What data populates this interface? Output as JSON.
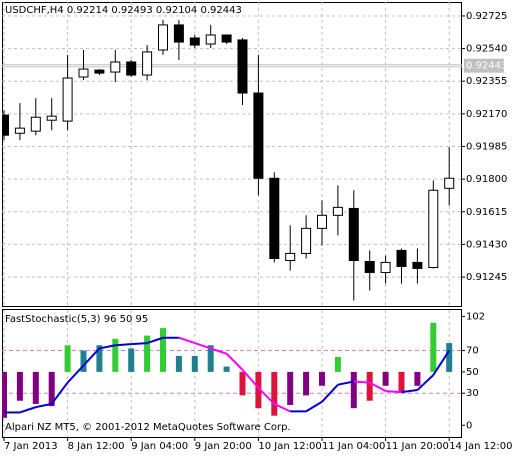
{
  "chart_data": [
    {
      "type": "candlestick",
      "title": "USDCHF,H4  0.92214 0.92493 0.92104 0.92443",
      "categories": [
        "7 Jan 2013",
        null,
        null,
        null,
        "8 Jan 12:00",
        null,
        null,
        null,
        "9 Jan 04:00",
        null,
        null,
        null,
        "9 Jan 20:00",
        null,
        null,
        null,
        "10 Jan 12:00",
        null,
        null,
        null,
        "11 Jan 04:00",
        null,
        null,
        null,
        "11 Jan 20:00",
        null,
        null,
        null,
        "14 Jan 12:00"
      ],
      "open": [
        0.92163,
        0.9206,
        0.92072,
        0.92134,
        0.92129,
        0.92379,
        0.92418,
        0.92407,
        0.92464,
        0.9239,
        0.92532,
        0.92674,
        0.926,
        0.92566,
        0.92617,
        0.92589,
        0.92288,
        0.91805,
        0.91339,
        0.91379,
        0.91521,
        0.91595,
        0.91634,
        0.91333,
        0.91271,
        0.91396,
        0.91328,
        0.91299,
        0.91748
      ],
      "high": [
        0.92191,
        0.92231,
        0.92259,
        0.92259,
        0.92504,
        0.92532,
        0.92424,
        0.92532,
        0.92475,
        0.9256,
        0.92702,
        0.92702,
        0.92617,
        0.92674,
        0.92617,
        0.926,
        0.92504,
        0.91839,
        0.91538,
        0.91595,
        0.9168,
        0.91765,
        0.91737,
        0.91396,
        0.91367,
        0.91407,
        0.91407,
        0.91793,
        0.91981
      ],
      "low": [
        0.92021,
        0.92021,
        0.92049,
        0.92077,
        0.92077,
        0.92361,
        0.9239,
        0.9235,
        0.92379,
        0.92361,
        0.92504,
        0.92475,
        0.92543,
        0.92543,
        0.92566,
        0.9222,
        0.91708,
        0.91328,
        0.91282,
        0.9135,
        0.91424,
        0.91481,
        0.91112,
        0.91169,
        0.91208,
        0.91208,
        0.91208,
        0.91294,
        0.91651
      ],
      "close": [
        0.92049,
        0.92089,
        0.92151,
        0.92157,
        0.92373,
        0.92424,
        0.92401,
        0.92464,
        0.9239,
        0.92521,
        0.92674,
        0.92577,
        0.9256,
        0.92617,
        0.92577,
        0.92288,
        0.91805,
        0.9135,
        0.91379,
        0.91521,
        0.91595,
        0.9164,
        0.91339,
        0.91271,
        0.91328,
        0.91305,
        0.91294,
        0.91737,
        0.91805
      ],
      "up_color": "#ffffff",
      "down_color": "#000000",
      "current_price": 0.92443,
      "ylim": [
        0.91081,
        0.92804
      ],
      "yticks": [
        {
          "value": 0.92725,
          "label": "0.92725"
        },
        {
          "value": 0.9254,
          "label": "0.92540"
        },
        {
          "value": 0.92355,
          "label": "0.92355"
        },
        {
          "value": 0.9217,
          "label": "0.92170"
        },
        {
          "value": 0.91985,
          "label": "0.91985"
        },
        {
          "value": 0.918,
          "label": "0.91800"
        },
        {
          "value": 0.91615,
          "label": "0.91615"
        },
        {
          "value": 0.9143,
          "label": "0.91430"
        },
        {
          "value": 0.91245,
          "label": "0.91245"
        }
      ],
      "grid": true
    },
    {
      "type": "stochastic",
      "title": "FastStochastic(5,3) 96 50 95",
      "annotation": "Alpari NZ MT5, © 2001-2012 MetaQuotes Software Corp.",
      "base": 50,
      "values": [
        7,
        23,
        20,
        18,
        75,
        70,
        75,
        81,
        72,
        84,
        91,
        65,
        65,
        75,
        55,
        28,
        16,
        9,
        19,
        28,
        37,
        64,
        16,
        23,
        37,
        31,
        37,
        96,
        77
      ],
      "bar_colors": [
        "#800080",
        "#800080",
        "#800080",
        "#800080",
        "#32cd32",
        "#20808f",
        "#20808f",
        "#32cd32",
        "#20808f",
        "#32cd32",
        "#32cd32",
        "#20808f",
        "#20808f",
        "#20808f",
        "#20808f",
        "#dc143c",
        "#dc143c",
        "#dc143c",
        "#800080",
        "#800080",
        "#800080",
        "#32cd32",
        "#800080",
        "#dc143c",
        "#800080",
        "#dc143c",
        "#800080",
        "#32cd32",
        "#20808f"
      ],
      "signal": [
        12,
        12,
        17,
        20,
        40,
        56,
        72,
        75,
        76,
        77,
        82,
        82,
        77,
        72,
        67,
        52,
        35,
        20,
        13,
        13,
        22,
        38,
        41,
        40,
        32,
        31,
        33,
        47,
        70
      ],
      "signal_up_color": "#0000cd",
      "signal_down_color": "#ff00ff",
      "levels": [
        70,
        30
      ],
      "level_color": "#c080e0",
      "ylim": [
        -11,
        108
      ],
      "yticks": [
        102,
        70,
        50,
        30,
        0
      ]
    }
  ]
}
